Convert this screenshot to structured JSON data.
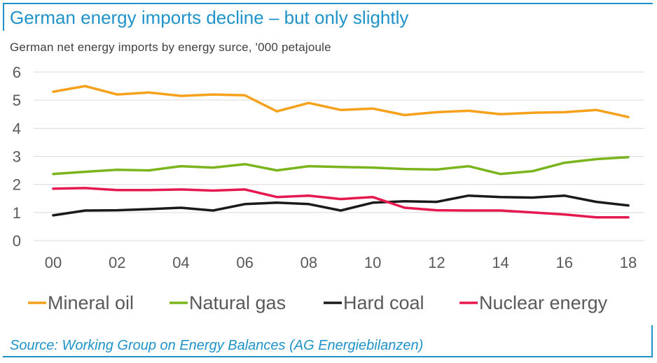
{
  "title": "German energy imports decline – but only slightly",
  "subtitle": "German net energy imports by energy surce, '000 petajoule",
  "source": "Source: Working Group on Energy Balances (AG Energiebilanzen)",
  "chart_data": {
    "type": "line",
    "x": [
      2000,
      2001,
      2002,
      2003,
      2004,
      2005,
      2006,
      2007,
      2008,
      2009,
      2010,
      2011,
      2012,
      2013,
      2014,
      2015,
      2016,
      2017,
      2018
    ],
    "x_tick_values": [
      2000,
      2002,
      2004,
      2006,
      2008,
      2010,
      2012,
      2014,
      2016,
      2018
    ],
    "x_tick_labels": [
      "00",
      "02",
      "04",
      "06",
      "08",
      "10",
      "12",
      "14",
      "16",
      "18"
    ],
    "ylim": [
      0,
      6
    ],
    "y_ticks": [
      0,
      1,
      2,
      3,
      4,
      5,
      6
    ],
    "grid": true,
    "legend_position": "bottom",
    "series": [
      {
        "name": "Mineral oil",
        "color": "#f5a11c",
        "values": [
          5.3,
          5.5,
          5.2,
          5.27,
          5.15,
          5.2,
          5.17,
          4.6,
          4.9,
          4.65,
          4.7,
          4.47,
          4.57,
          4.62,
          4.5,
          4.55,
          4.57,
          4.65,
          4.4
        ]
      },
      {
        "name": "Natural gas",
        "color": "#7ab51d",
        "values": [
          2.37,
          2.45,
          2.52,
          2.5,
          2.65,
          2.6,
          2.72,
          2.5,
          2.65,
          2.62,
          2.6,
          2.55,
          2.53,
          2.65,
          2.37,
          2.47,
          2.77,
          2.9,
          2.97
        ]
      },
      {
        "name": "Hard coal",
        "color": "#1a1a1a",
        "values": [
          0.9,
          1.07,
          1.08,
          1.12,
          1.17,
          1.07,
          1.3,
          1.35,
          1.3,
          1.07,
          1.35,
          1.4,
          1.38,
          1.6,
          1.55,
          1.53,
          1.6,
          1.38,
          1.25
        ]
      },
      {
        "name": "Nuclear energy",
        "color": "#e5194f",
        "values": [
          1.85,
          1.87,
          1.8,
          1.8,
          1.82,
          1.78,
          1.82,
          1.55,
          1.6,
          1.48,
          1.55,
          1.17,
          1.08,
          1.07,
          1.07,
          1.0,
          0.93,
          0.83,
          0.83
        ]
      }
    ]
  }
}
